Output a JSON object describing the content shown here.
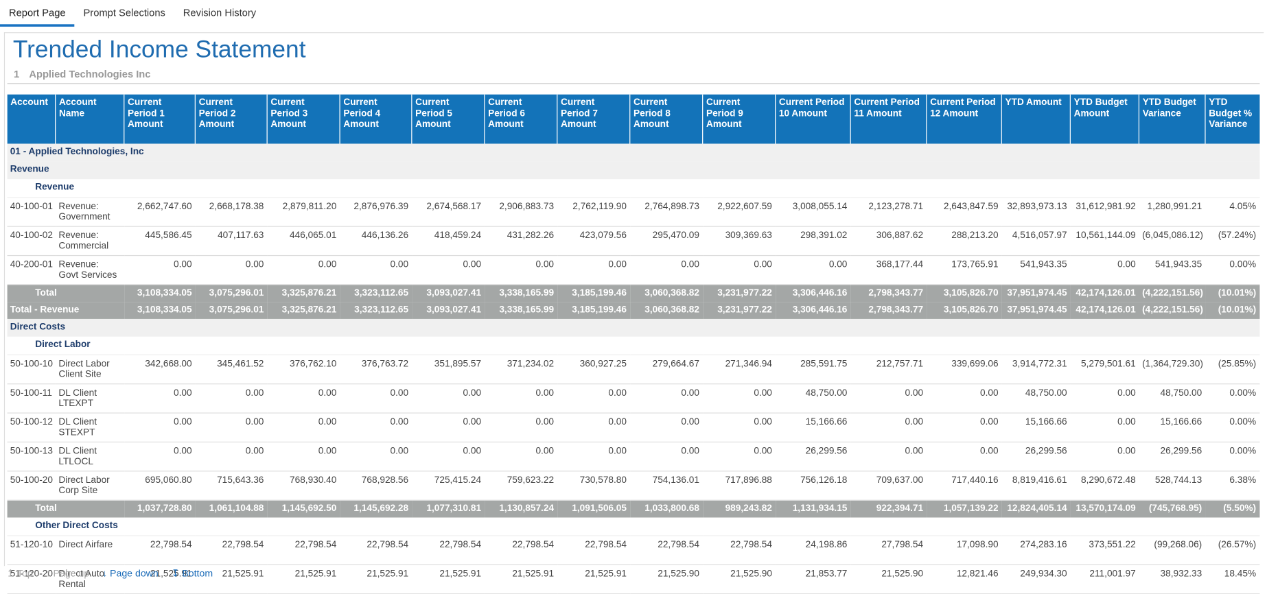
{
  "tabs": [
    "Report Page",
    "Prompt Selections",
    "Revision History"
  ],
  "header": {
    "title": "Trended Income Statement",
    "entity_number": "1",
    "entity_name": "Applied Technologies Inc"
  },
  "table": {
    "columns": [
      "Account",
      "Account Name",
      "Current Period 1 Amount",
      "Current Period 2 Amount",
      "Current Period 3 Amount",
      "Current Period 4 Amount",
      "Current Period 5 Amount",
      "Current Period 6 Amount",
      "Current Period 7 Amount",
      "Current Period 8 Amount",
      "Current Period 9 Amount",
      "Current Period 10 Amount",
      "Current Period 11 Amount",
      "Current Period 12 Amount",
      "YTD Amount",
      "YTD Budget Amount",
      "YTD Budget Variance",
      "YTD Budget % Variance"
    ],
    "company": "01  - Applied Technologies, Inc",
    "groups": [
      {
        "title": "Revenue",
        "subgroups": [
          {
            "title": "Revenue",
            "rows": [
              [
                "40-100-01",
                "Revenue: Government",
                "2,662,747.60",
                "2,668,178.38",
                "2,879,811.20",
                "2,876,976.39",
                "2,674,568.17",
                "2,906,883.73",
                "2,762,119.90",
                "2,764,898.73",
                "2,922,607.59",
                "3,008,055.14",
                "2,123,278.71",
                "2,643,847.59",
                "32,893,973.13",
                "31,612,981.92",
                "1,280,991.21",
                "4.05%"
              ],
              [
                "40-100-02",
                "Revenue: Commercial",
                "445,586.45",
                "407,117.63",
                "446,065.01",
                "446,136.26",
                "418,459.24",
                "431,282.26",
                "423,079.56",
                "295,470.09",
                "309,369.63",
                "298,391.02",
                "306,887.62",
                "288,213.20",
                "4,516,057.97",
                "10,561,144.09",
                "(6,045,086.12)",
                "(57.24%)"
              ],
              [
                "40-200-01",
                "Revenue: Govt Services",
                "0.00",
                "0.00",
                "0.00",
                "0.00",
                "0.00",
                "0.00",
                "0.00",
                "0.00",
                "0.00",
                "0.00",
                "368,177.44",
                "173,765.91",
                "541,943.35",
                "0.00",
                "541,943.35",
                "0.00%"
              ]
            ],
            "total": [
              "Total",
              "3,108,334.05",
              "3,075,296.01",
              "3,325,876.21",
              "3,323,112.65",
              "3,093,027.41",
              "3,338,165.99",
              "3,185,199.46",
              "3,060,368.82",
              "3,231,977.22",
              "3,306,446.16",
              "2,798,343.77",
              "3,105,826.70",
              "37,951,974.45",
              "42,174,126.01",
              "(4,222,151.56)",
              "(10.01%)"
            ]
          }
        ],
        "total": [
          "Total - Revenue",
          "3,108,334.05",
          "3,075,296.01",
          "3,325,876.21",
          "3,323,112.65",
          "3,093,027.41",
          "3,338,165.99",
          "3,185,199.46",
          "3,060,368.82",
          "3,231,977.22",
          "3,306,446.16",
          "2,798,343.77",
          "3,105,826.70",
          "37,951,974.45",
          "42,174,126.01",
          "(4,222,151.56)",
          "(10.01%)"
        ]
      },
      {
        "title": "Direct Costs",
        "subgroups": [
          {
            "title": "Direct Labor",
            "rows": [
              [
                "50-100-10",
                "Direct Labor Client Site",
                "342,668.00",
                "345,461.52",
                "376,762.10",
                "376,763.72",
                "351,895.57",
                "371,234.02",
                "360,927.25",
                "279,664.67",
                "271,346.94",
                "285,591.75",
                "212,757.71",
                "339,699.06",
                "3,914,772.31",
                "5,279,501.61",
                "(1,364,729.30)",
                "(25.85%)"
              ],
              [
                "50-100-11",
                "DL Client LTEXPT",
                "0.00",
                "0.00",
                "0.00",
                "0.00",
                "0.00",
                "0.00",
                "0.00",
                "0.00",
                "0.00",
                "48,750.00",
                "0.00",
                "0.00",
                "48,750.00",
                "0.00",
                "48,750.00",
                "0.00%"
              ],
              [
                "50-100-12",
                "DL Client STEXPT",
                "0.00",
                "0.00",
                "0.00",
                "0.00",
                "0.00",
                "0.00",
                "0.00",
                "0.00",
                "0.00",
                "15,166.66",
                "0.00",
                "0.00",
                "15,166.66",
                "0.00",
                "15,166.66",
                "0.00%"
              ],
              [
                "50-100-13",
                "DL Client LTLOCL",
                "0.00",
                "0.00",
                "0.00",
                "0.00",
                "0.00",
                "0.00",
                "0.00",
                "0.00",
                "0.00",
                "26,299.56",
                "0.00",
                "0.00",
                "26,299.56",
                "0.00",
                "26,299.56",
                "0.00%"
              ],
              [
                "50-100-20",
                "Direct Labor Corp Site",
                "695,060.80",
                "715,643.36",
                "768,930.40",
                "768,928.56",
                "725,415.24",
                "759,623.22",
                "730,578.80",
                "754,136.01",
                "717,896.88",
                "756,126.18",
                "709,637.00",
                "717,440.16",
                "8,819,416.61",
                "8,290,672.48",
                "528,744.13",
                "6.38%"
              ]
            ],
            "total": [
              "Total",
              "1,037,728.80",
              "1,061,104.88",
              "1,145,692.50",
              "1,145,692.28",
              "1,077,310.81",
              "1,130,857.24",
              "1,091,506.05",
              "1,033,800.68",
              "989,243.82",
              "1,131,934.15",
              "922,394.71",
              "1,057,139.22",
              "12,824,405.14",
              "13,570,174.09",
              "(745,768.95)",
              "(5.50%)"
            ]
          },
          {
            "title": "Other Direct Costs",
            "rows": [
              [
                "51-120-10",
                "Direct Airfare",
                "22,798.54",
                "22,798.54",
                "22,798.54",
                "22,798.54",
                "22,798.54",
                "22,798.54",
                "22,798.54",
                "22,798.54",
                "22,798.54",
                "24,198.86",
                "27,798.54",
                "17,098.90",
                "274,283.16",
                "373,551.22",
                "(99,268.06)",
                "(26.57%)"
              ],
              [
                "51-120-20",
                "Direct Auto Rental",
                "21,525.91",
                "21,525.91",
                "21,525.91",
                "21,525.91",
                "21,525.91",
                "21,525.91",
                "21,525.91",
                "21,525.90",
                "21,525.90",
                "21,853.77",
                "21,525.90",
                "12,821.46",
                "249,934.30",
                "211,001.97",
                "38,932.33",
                "18.45%"
              ]
            ]
          }
        ]
      }
    ]
  },
  "footer": [
    "Top",
    "Page up",
    "Page down",
    "Bottom"
  ]
}
